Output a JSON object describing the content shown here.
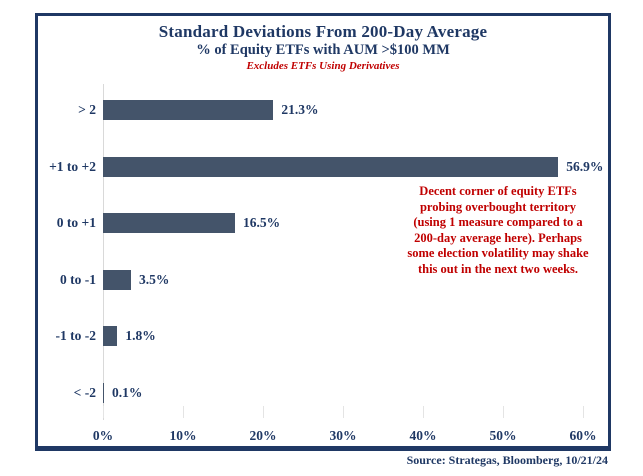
{
  "header": {
    "title": "Standard Deviations From 200-Day Average",
    "subtitle": "% of Equity ETFs with AUM >$100 MM",
    "note": "Excludes ETFs Using Derivatives"
  },
  "chart_data": {
    "type": "bar",
    "orientation": "horizontal",
    "title": "Standard Deviations From 200-Day Average",
    "subtitle": "% of Equity ETFs with AUM >$100 MM",
    "note": "Excludes ETFs Using Derivatives",
    "categories": [
      "> 2",
      "+1 to +2",
      "0 to +1",
      "0 to -1",
      "-1 to -2",
      "< -2"
    ],
    "values": [
      21.3,
      56.9,
      16.5,
      3.5,
      1.8,
      0.1
    ],
    "value_labels": [
      "21.3%",
      "56.9%",
      "16.5%",
      "3.5%",
      "1.8%",
      "0.1%"
    ],
    "xlabel": "",
    "ylabel": "",
    "xlim": [
      0,
      60
    ],
    "x_ticks": [
      0,
      10,
      20,
      30,
      40,
      50,
      60
    ],
    "x_tick_labels": [
      "0%",
      "10%",
      "20%",
      "30%",
      "40%",
      "50%",
      "60%"
    ],
    "grid": false,
    "legend": "none",
    "bar_color": "#44546A",
    "axis_color": "#D9D9D9"
  },
  "annotation": {
    "lines": [
      "Decent corner of equity ETFs",
      "probing overbought territory",
      "(using 1 measure compared to a",
      "200-day average here). Perhaps",
      "some election volatility may shake",
      "this out in the next two weeks."
    ],
    "color": "#C00000"
  },
  "footer": {
    "source": "Source: Strategas, Bloomberg, 10/21/24"
  },
  "colors": {
    "navy": "#1F3864",
    "red": "#C00000",
    "bar": "#44546A",
    "axis_gray": "#D9D9D9",
    "background": "#FFFFFF"
  }
}
